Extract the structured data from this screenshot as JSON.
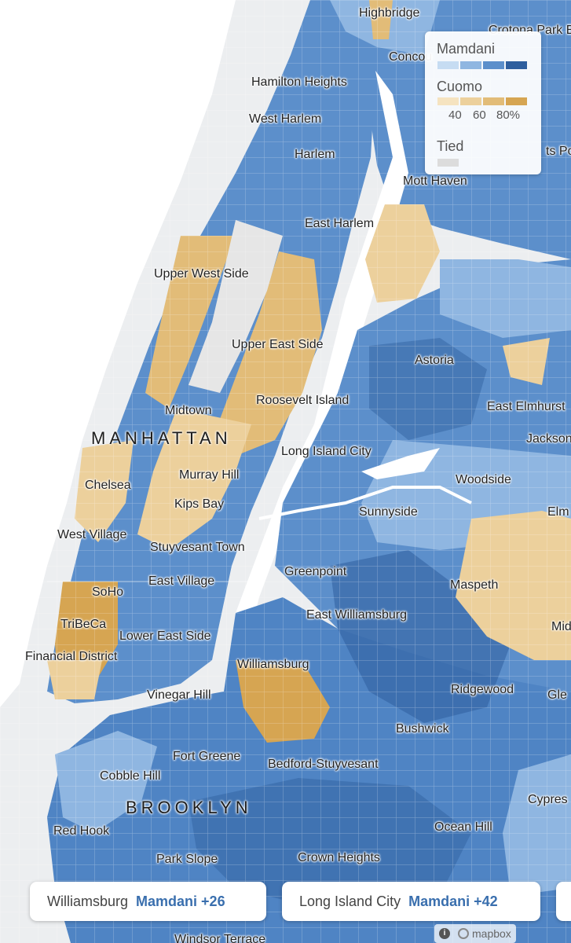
{
  "legend": {
    "mamdani_label": "Mamdani",
    "cuomo_label": "Cuomo",
    "tied_label": "Tied",
    "ticks": [
      "40",
      "60",
      "80%"
    ],
    "mamdani_colors": [
      "#c6dcf2",
      "#8fb6e1",
      "#5c8fcb",
      "#2f5f9e"
    ],
    "cuomo_colors": [
      "#f5e3c0",
      "#ecd09c",
      "#e2bc78",
      "#d6a552"
    ],
    "tied_color": "#dcdcdc"
  },
  "boroughs": {
    "manhattan": "MANHATTAN",
    "brooklyn": "BROOKLYN"
  },
  "neighborhoods": {
    "highbridge": "Highbridge",
    "crotona_park_east": "Crotona Park E",
    "concourse": "Concou",
    "hamilton_heights": "Hamilton Heights",
    "west_harlem": "West Harlem",
    "harlem": "Harlem",
    "hunts_point": "ts Po",
    "mott_haven": "Mott Haven",
    "east_harlem": "East Harlem",
    "upper_west_side": "Upper West Side",
    "upper_east_side": "Upper East Side",
    "astoria": "Astoria",
    "midtown": "Midtown",
    "roosevelt_island": "Roosevelt Island",
    "east_elmhurst": "East Elmhurst",
    "jackson_heights": "Jackson",
    "long_island_city": "Long Island City",
    "chelsea": "Chelsea",
    "murray_hill": "Murray Hill",
    "woodside": "Woodside",
    "kips_bay": "Kips Bay",
    "elmhurst": "Elm",
    "sunnyside": "Sunnyside",
    "west_village": "West Village",
    "stuyvesant_town": "Stuyvesant Town",
    "greenpoint": "Greenpoint",
    "east_village": "East Village",
    "maspeth": "Maspeth",
    "soho": "SoHo",
    "east_williamsburg": "East Williamsburg",
    "tribeca": "TriBeCa",
    "lower_east_side": "Lower East Side",
    "middle_village": "Mid",
    "financial_district": "Financial District",
    "williamsburg": "Williamsburg",
    "vinegar_hill": "Vinegar Hill",
    "ridgewood": "Ridgewood",
    "glendale": "Gle",
    "bushwick": "Bushwick",
    "fort_greene": "Fort Greene",
    "bedford_stuyvesant": "Bedford-Stuyvesant",
    "cobble_hill": "Cobble Hill",
    "cypress_hills": "Cypres",
    "red_hook": "Red Hook",
    "ocean_hill": "Ocean Hill",
    "park_slope": "Park Slope",
    "crown_heights": "Crown Heights",
    "windsor_terrace": "Windsor Terrace"
  },
  "cards": [
    {
      "place": "Williamsburg",
      "winner": "Mamdani +26"
    },
    {
      "place": "Long Island City",
      "winner": "Mamdani +42"
    }
  ],
  "attribution": {
    "info_icon": "i",
    "provider": "mapbox"
  }
}
